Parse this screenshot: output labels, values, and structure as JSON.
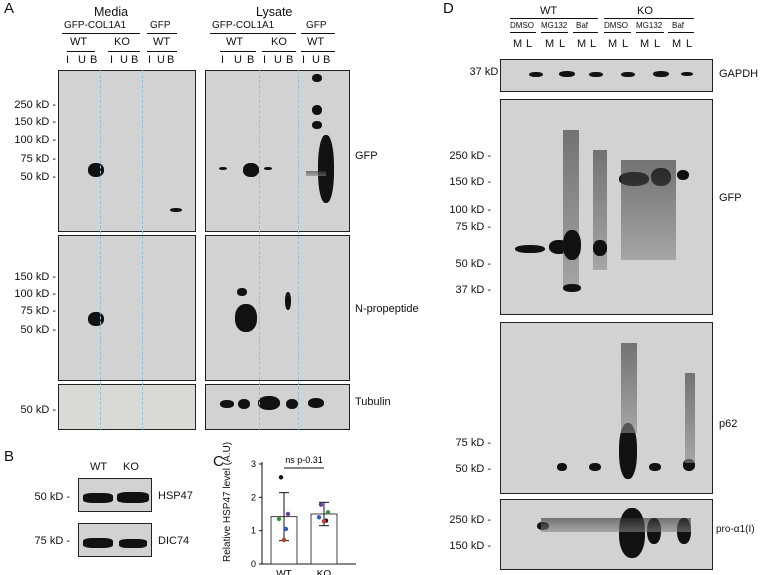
{
  "panels": {
    "A": "A",
    "B": "B",
    "C": "C",
    "D": "D"
  },
  "panelA": {
    "media_title": "Media",
    "lysate_title": "Lysate",
    "construct": "GFP-COL1A1",
    "gfp": "GFP",
    "wt": "WT",
    "ko": "KO",
    "lanes": [
      "I",
      "U",
      "B"
    ],
    "mw_gfp": [
      "250 kD -",
      "150 kD -",
      "100 kD -",
      "75 kD -",
      "50 kD -"
    ],
    "mw_npro": [
      "150 kD -",
      "100 kD -",
      "75 kD -",
      "50 kD -"
    ],
    "mw_tub": [
      "50 kD -"
    ],
    "blot_labels": [
      "GFP",
      "N-propeptide",
      "Tubulin"
    ]
  },
  "panelB": {
    "wt": "WT",
    "ko": "KO",
    "mw": [
      "50 kD -",
      "75 kD -"
    ],
    "labels": [
      "HSP47",
      "DIC74"
    ]
  },
  "panelC": {
    "ylabel": "Relative HSP47 level (A.U)",
    "yticks": [
      "0",
      "1",
      "2",
      "3"
    ],
    "categories": [
      "WT",
      "KO"
    ],
    "stat": "ns p-0.31",
    "chart_data": {
      "type": "bar",
      "categories": [
        "WT",
        "KO"
      ],
      "values": [
        1.42,
        1.5
      ],
      "errors": [
        0.72,
        0.35
      ],
      "ylim": [
        0,
        3
      ],
      "points": {
        "WT": [
          {
            "y": 2.6,
            "color": "#111111"
          },
          {
            "y": 1.5,
            "color": "#6a3d9a"
          },
          {
            "y": 1.35,
            "color": "#3a8f3a"
          },
          {
            "y": 1.05,
            "color": "#3060c0"
          },
          {
            "y": 0.72,
            "color": "#c83a2a"
          }
        ],
        "KO": [
          {
            "y": 1.78,
            "color": "#6a3d9a"
          },
          {
            "y": 1.55,
            "color": "#3a8f3a"
          },
          {
            "y": 1.4,
            "color": "#3060c0"
          },
          {
            "y": 1.3,
            "color": "#111111"
          },
          {
            "y": 1.28,
            "color": "#c83a2a"
          }
        ]
      }
    }
  },
  "panelD": {
    "wt": "WT",
    "ko": "KO",
    "treatments": [
      "DMSO",
      "MG132",
      "Baf",
      "DMSO",
      "MG132",
      "Baf"
    ],
    "lanes": [
      "M",
      "L",
      "M",
      "L",
      "M",
      "L",
      "M",
      "L",
      "M",
      "L",
      "M",
      "L"
    ],
    "mw_gapdh": [
      "37 kD -"
    ],
    "mw_gfp": [
      "250 kD -",
      "150 kD -",
      "100 kD -",
      "75 kD -",
      "50 kD -",
      "37 kD -"
    ],
    "mw_p62": [
      "75 kD -",
      "50 kD -"
    ],
    "mw_pro": [
      "250 kD -",
      "150 kD -"
    ],
    "labels": [
      "GAPDH",
      "GFP",
      "p62",
      "pro-α1(I)"
    ]
  }
}
